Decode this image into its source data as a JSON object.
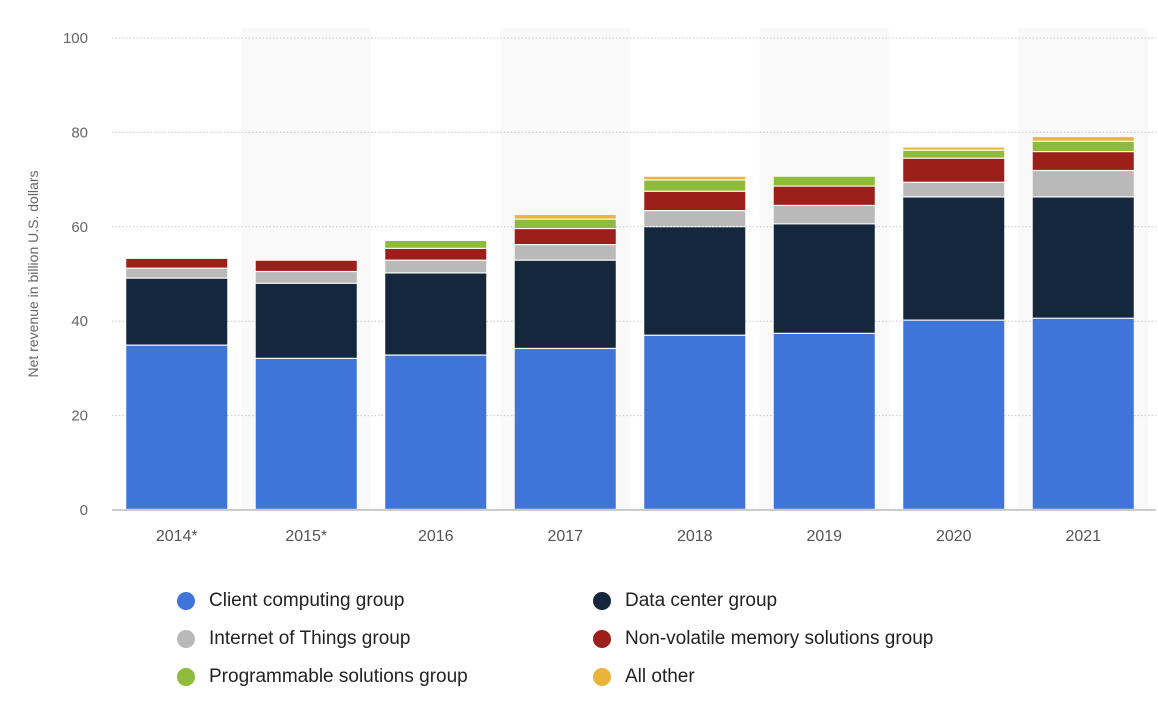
{
  "chart_data": {
    "type": "bar",
    "stacked": true,
    "title": "",
    "xlabel": "",
    "ylabel": "Net revenue in billion U.S. dollars",
    "ylim": [
      0,
      100
    ],
    "yticks": [
      0,
      20,
      40,
      60,
      80,
      100
    ],
    "grid": true,
    "legend_position": "bottom",
    "categories": [
      "2014*",
      "2015*",
      "2016",
      "2017",
      "2018",
      "2019",
      "2020",
      "2021"
    ],
    "series": [
      {
        "name": "Client computing group",
        "color": "#3f75d8",
        "values": [
          34.8,
          32.0,
          32.7,
          34.1,
          36.9,
          37.3,
          40.1,
          40.5
        ]
      },
      {
        "name": "Data center group",
        "color": "#14273d",
        "values": [
          14.2,
          15.9,
          17.4,
          18.7,
          23.0,
          23.2,
          26.1,
          25.7
        ]
      },
      {
        "name": "Internet of Things group",
        "color": "#b9b9b9",
        "values": [
          2.1,
          2.5,
          2.7,
          3.3,
          3.4,
          3.9,
          3.1,
          5.6
        ]
      },
      {
        "name": "Non-volatile memory solutions group",
        "color": "#9c1f19",
        "values": [
          2.1,
          2.4,
          2.5,
          3.4,
          4.1,
          4.1,
          5.1,
          4.0
        ]
      },
      {
        "name": "Programmable solutions group",
        "color": "#8ebb3a",
        "values": [
          0,
          0,
          1.7,
          2.0,
          2.4,
          2.1,
          1.7,
          2.2
        ]
      },
      {
        "name": "All other",
        "color": "#e9b43a",
        "values": [
          0,
          0,
          0,
          1.0,
          0.8,
          0,
          0.7,
          1.0
        ]
      }
    ]
  }
}
